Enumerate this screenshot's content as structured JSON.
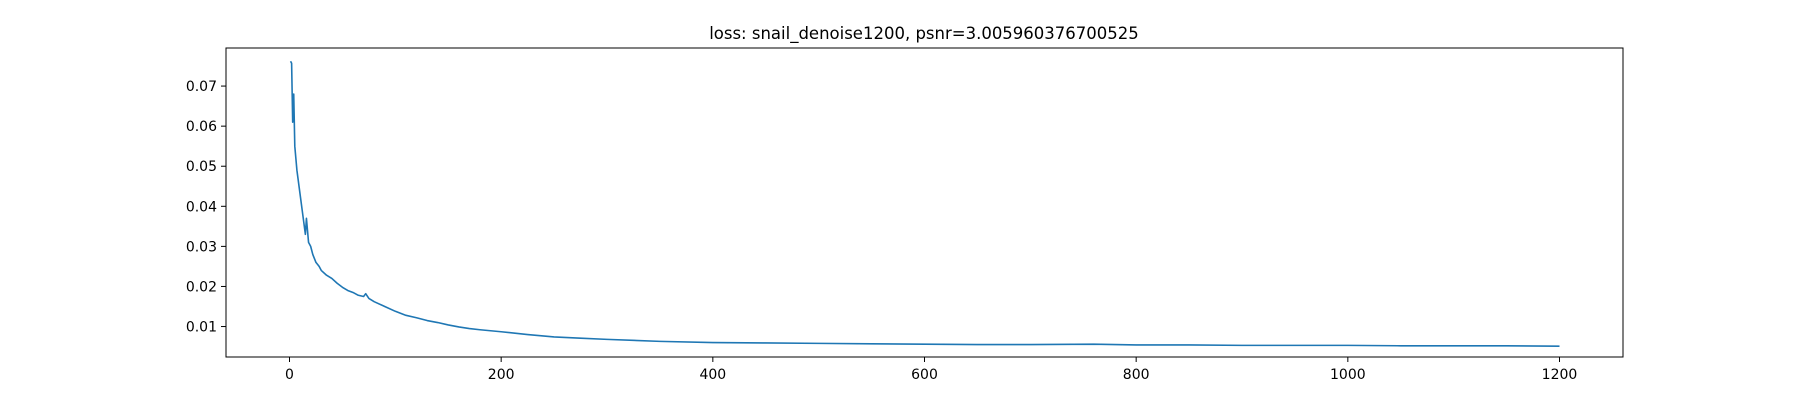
{
  "chart_data": {
    "type": "line",
    "title": "loss: snail_denoise1200, psnr=3.005960376700525",
    "xlabel": "",
    "ylabel": "",
    "xlim": [
      -60,
      1260
    ],
    "ylim": [
      0.0024,
      0.0795
    ],
    "x_ticks": [
      0,
      200,
      400,
      600,
      800,
      1000,
      1200
    ],
    "y_ticks": [
      0.01,
      0.02,
      0.03,
      0.04,
      0.05,
      0.06,
      0.07
    ],
    "x_tick_labels": [
      "0",
      "200",
      "400",
      "600",
      "800",
      "1000",
      "1200"
    ],
    "y_tick_labels": [
      "0.01",
      "0.02",
      "0.03",
      "0.04",
      "0.05",
      "0.06",
      "0.07"
    ],
    "grid": false,
    "legend": "none",
    "series": [
      {
        "color": "#1f77b4",
        "x": [
          1,
          2,
          3,
          4,
          5,
          6,
          7,
          8,
          9,
          10,
          12,
          14,
          15,
          16,
          18,
          20,
          22,
          25,
          28,
          30,
          35,
          40,
          45,
          50,
          55,
          60,
          65,
          70,
          72,
          75,
          80,
          90,
          100,
          110,
          120,
          130,
          140,
          150,
          160,
          170,
          180,
          200,
          225,
          250,
          275,
          300,
          350,
          400,
          450,
          500,
          550,
          600,
          650,
          700,
          760,
          800,
          850,
          900,
          950,
          1000,
          1050,
          1100,
          1150,
          1200
        ],
        "y": [
          0.0762,
          0.0757,
          0.061,
          0.068,
          0.055,
          0.052,
          0.049,
          0.047,
          0.045,
          0.043,
          0.039,
          0.035,
          0.033,
          0.037,
          0.031,
          0.03,
          0.028,
          0.026,
          0.025,
          0.024,
          0.0228,
          0.022,
          0.0208,
          0.0198,
          0.019,
          0.0185,
          0.0178,
          0.0175,
          0.0182,
          0.017,
          0.0162,
          0.015,
          0.0138,
          0.0128,
          0.0122,
          0.0115,
          0.011,
          0.0104,
          0.0099,
          0.0095,
          0.0092,
          0.0087,
          0.008,
          0.0074,
          0.0071,
          0.0068,
          0.0063,
          0.006,
          0.0059,
          0.0058,
          0.0057,
          0.0056,
          0.0055,
          0.0055,
          0.0056,
          0.0054,
          0.0054,
          0.0053,
          0.0053,
          0.0053,
          0.0052,
          0.0052,
          0.0052,
          0.0051
        ]
      }
    ]
  }
}
